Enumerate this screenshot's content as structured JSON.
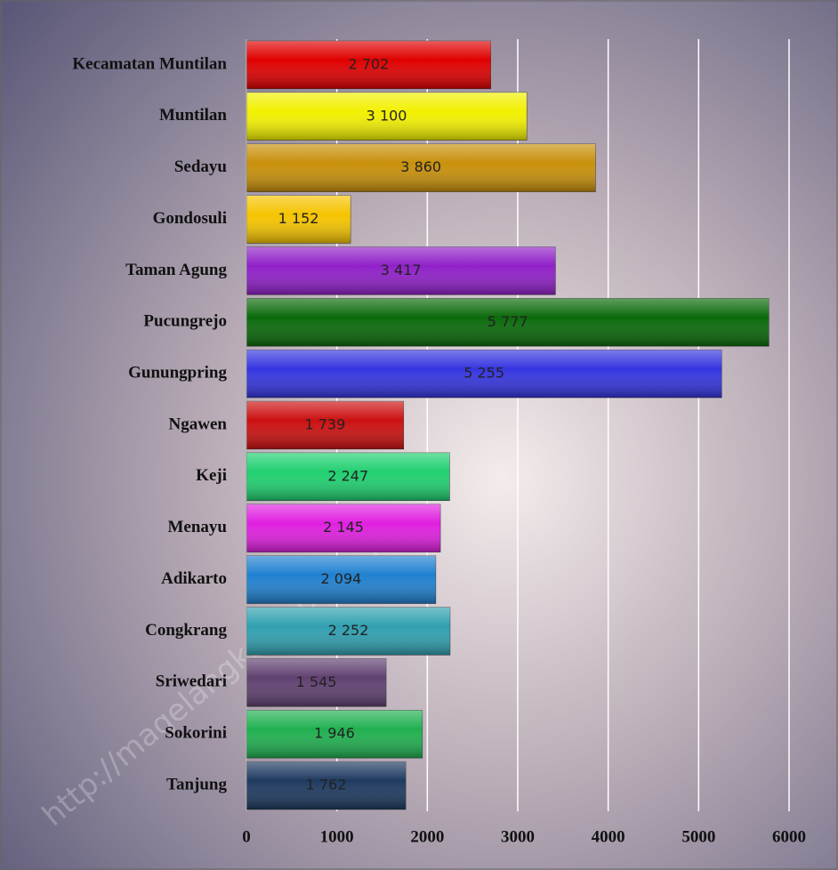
{
  "chart_data": {
    "type": "bar",
    "orientation": "horizontal",
    "watermark": "http://magelangkab.bps.go.id",
    "categories": [
      "Kecamatan Muntilan",
      "Muntilan",
      "Sedayu",
      "Gondosuli",
      "Taman Agung",
      "Pucungrejo",
      "Gunungpring",
      "Ngawen",
      "Keji",
      "Menayu",
      "Adikarto",
      "Congkrang",
      "Sriwedari",
      "Sokorini",
      "Tanjung"
    ],
    "values": [
      2702,
      3100,
      3860,
      1152,
      3417,
      5777,
      5255,
      1739,
      2247,
      2145,
      2094,
      2252,
      1545,
      1946,
      1762
    ],
    "value_labels": [
      "2 702",
      "3 100",
      "3 860",
      "1 152",
      "3 417",
      "5 777",
      "5 255",
      "1 739",
      "2 247",
      "2 145",
      "2 094",
      "2 252",
      "1 545",
      "1 946",
      "1 762"
    ],
    "colors": [
      "#e00000",
      "#f2f000",
      "#c8900a",
      "#f5c400",
      "#9020c8",
      "#0a6a0a",
      "#3535e0",
      "#cc1010",
      "#20d070",
      "#e020e0",
      "#2080d0",
      "#30a0b0",
      "#604070",
      "#20b050",
      "#1e3a60"
    ],
    "xlim": [
      0,
      6000
    ],
    "xticks": [
      0,
      1000,
      2000,
      3000,
      4000,
      5000,
      6000
    ],
    "grid": true
  }
}
